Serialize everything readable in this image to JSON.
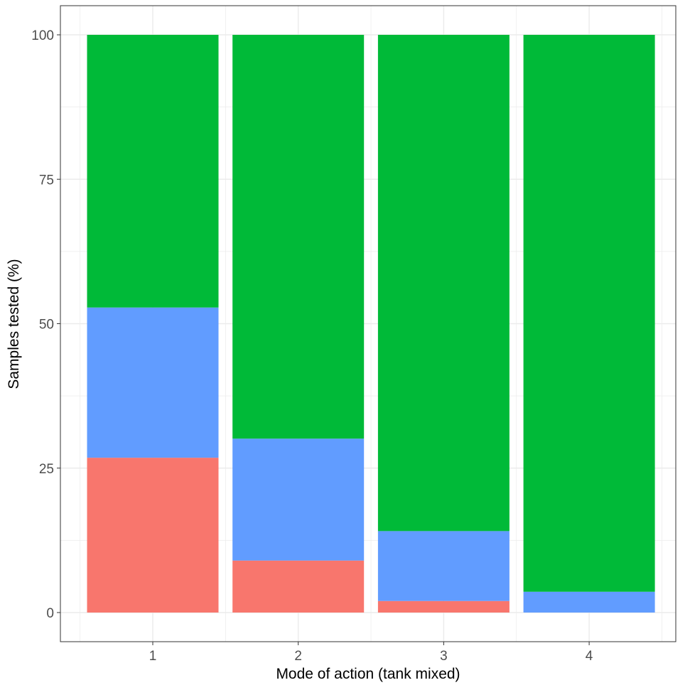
{
  "chart_data": {
    "type": "bar",
    "stacked": true,
    "title": "",
    "xlabel": "Mode of action (tank mixed)",
    "ylabel": "Samples tested (%)",
    "categories": [
      "1",
      "2",
      "3",
      "4"
    ],
    "ylim": [
      0,
      100
    ],
    "yticks": [
      "0",
      "25",
      "50",
      "75",
      "100"
    ],
    "grid": true,
    "legend": "none",
    "series": [
      {
        "color": "#F8766D",
        "values": [
          26.8,
          9.0,
          2.0,
          0
        ]
      },
      {
        "color": "#619CFF",
        "values": [
          26.0,
          21.1,
          12.1,
          3.6
        ]
      },
      {
        "color": "#00BA38",
        "values": [
          47.2,
          69.9,
          85.9,
          96.4
        ]
      }
    ]
  }
}
